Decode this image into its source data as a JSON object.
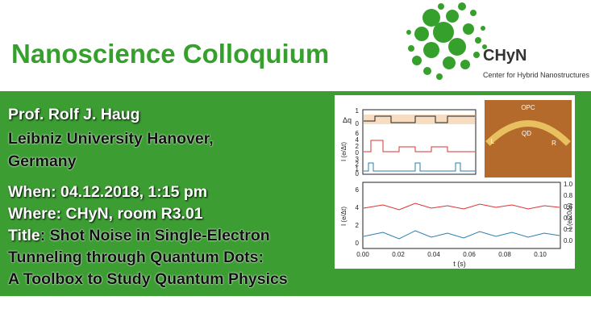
{
  "header": {
    "title": "Nanoscience Colloquium",
    "logo": {
      "name": "CHyN",
      "subtitle": "Center for Hybrid Nanostructures"
    }
  },
  "speaker": {
    "name": "Prof. Rolf J. Haug",
    "affiliation_1": "Leibniz University Hanover,",
    "affiliation_2": "Germany"
  },
  "details": {
    "when_label": "When",
    "when_value": ": 04.12.2018, 1:15 pm",
    "where_label": "Where",
    "where_value": ": CHyN, room R3.01",
    "title_label": "Title",
    "title_value_1": ": Shot Noise in Single-Electron",
    "title_value_2": "Tunneling through Quantum Dots:",
    "title_value_3": "A Toolbox to Study Quantum Physics"
  },
  "figure": {
    "top_ylabel": "Δq",
    "mid_ylabel": "I (e/Δt)",
    "top_ticks": [
      "1",
      "0",
      "6",
      "4",
      "2",
      "0",
      "3",
      "2",
      "1",
      "0"
    ],
    "bottom_ylabel": "I (e/Δt)",
    "bottom_left_ticks": [
      "6",
      "4",
      "2",
      "0"
    ],
    "right_ylabel": "I (e/20Δt)",
    "right_ticks": [
      "1.0",
      "0.8",
      "0.6",
      "0.4",
      "0.2",
      "0.0"
    ],
    "xticks": [
      "0.00",
      "0.02",
      "0.04",
      "0.06",
      "0.08",
      "0.10"
    ],
    "xlabel": "t (s)",
    "photo_labels": [
      "OPC",
      "QD",
      "L",
      "R"
    ]
  }
}
